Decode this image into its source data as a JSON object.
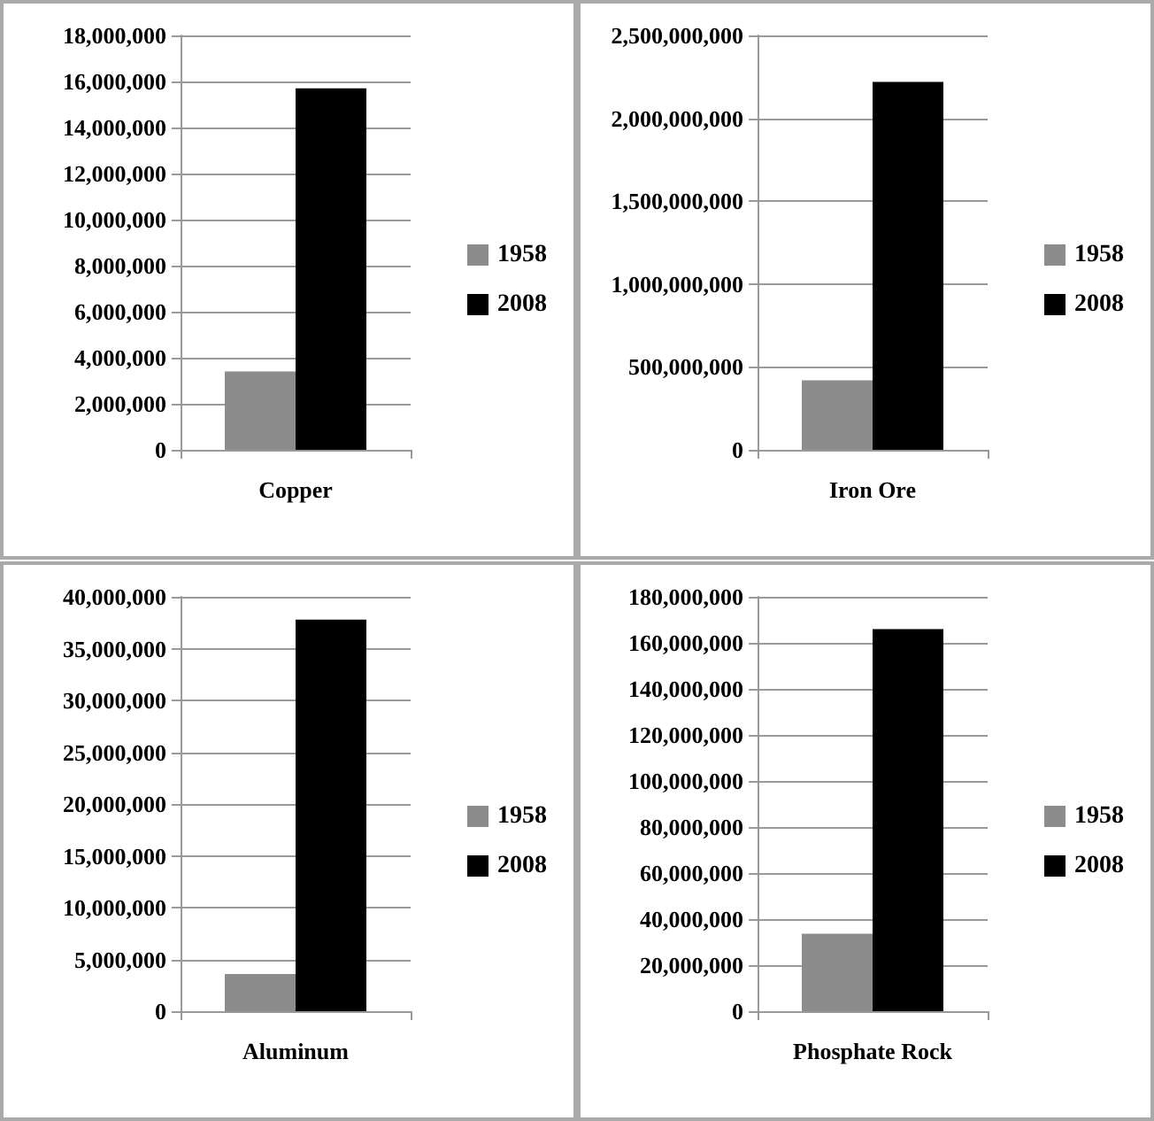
{
  "chart_data": [
    {
      "type": "bar",
      "categories": [
        "Copper"
      ],
      "series": [
        {
          "name": "1958",
          "color": "#8c8c8c",
          "values": [
            3400000
          ]
        },
        {
          "name": "2008",
          "color": "#000000",
          "values": [
            15700000
          ]
        }
      ],
      "ylim": [
        0,
        18000000
      ],
      "yticks": [
        {
          "value": 0,
          "label": "0"
        },
        {
          "value": 2000000,
          "label": "2,000,000"
        },
        {
          "value": 4000000,
          "label": "4,000,000"
        },
        {
          "value": 6000000,
          "label": "6,000,000"
        },
        {
          "value": 8000000,
          "label": "8,000,000"
        },
        {
          "value": 10000000,
          "label": "10,000,000"
        },
        {
          "value": 12000000,
          "label": "12,000,000"
        },
        {
          "value": 14000000,
          "label": "14,000,000"
        },
        {
          "value": 16000000,
          "label": "16,000,000"
        },
        {
          "value": 18000000,
          "label": "18,000,000"
        }
      ],
      "grid": "y",
      "legend": "right"
    },
    {
      "type": "bar",
      "categories": [
        "Iron Ore"
      ],
      "series": [
        {
          "name": "1958",
          "color": "#8c8c8c",
          "values": [
            420000000
          ]
        },
        {
          "name": "2008",
          "color": "#000000",
          "values": [
            2220000000
          ]
        }
      ],
      "ylim": [
        0,
        2500000000
      ],
      "yticks": [
        {
          "value": 0,
          "label": "0"
        },
        {
          "value": 500000000,
          "label": "500,000,000"
        },
        {
          "value": 1000000000,
          "label": "1,000,000,000"
        },
        {
          "value": 1500000000,
          "label": "1,500,000,000"
        },
        {
          "value": 2000000000,
          "label": "2,000,000,000"
        },
        {
          "value": 2500000000,
          "label": "2,500,000,000"
        }
      ],
      "grid": "y",
      "legend": "right"
    },
    {
      "type": "bar",
      "categories": [
        "Aluminum"
      ],
      "series": [
        {
          "name": "1958",
          "color": "#8c8c8c",
          "values": [
            3600000
          ]
        },
        {
          "name": "2008",
          "color": "#000000",
          "values": [
            37800000
          ]
        }
      ],
      "ylim": [
        0,
        40000000
      ],
      "yticks": [
        {
          "value": 0,
          "label": "0"
        },
        {
          "value": 5000000,
          "label": "5,000,000"
        },
        {
          "value": 10000000,
          "label": "10,000,000"
        },
        {
          "value": 15000000,
          "label": "15,000,000"
        },
        {
          "value": 20000000,
          "label": "20,000,000"
        },
        {
          "value": 25000000,
          "label": "25,000,000"
        },
        {
          "value": 30000000,
          "label": "30,000,000"
        },
        {
          "value": 35000000,
          "label": "35,000,000"
        },
        {
          "value": 40000000,
          "label": "40,000,000"
        }
      ],
      "grid": "y",
      "legend": "right"
    },
    {
      "type": "bar",
      "categories": [
        "Phosphate Rock"
      ],
      "series": [
        {
          "name": "1958",
          "color": "#8c8c8c",
          "values": [
            33700000
          ]
        },
        {
          "name": "2008",
          "color": "#000000",
          "values": [
            166000000
          ]
        }
      ],
      "ylim": [
        0,
        180000000
      ],
      "yticks": [
        {
          "value": 0,
          "label": "0"
        },
        {
          "value": 20000000,
          "label": "20,000,000"
        },
        {
          "value": 40000000,
          "label": "40,000,000"
        },
        {
          "value": 60000000,
          "label": "60,000,000"
        },
        {
          "value": 80000000,
          "label": "80,000,000"
        },
        {
          "value": 100000000,
          "label": "100,000,000"
        },
        {
          "value": 120000000,
          "label": "120,000,000"
        },
        {
          "value": 140000000,
          "label": "140,000,000"
        },
        {
          "value": 160000000,
          "label": "160,000,000"
        },
        {
          "value": 180000000,
          "label": "180,000,000"
        }
      ],
      "grid": "y",
      "legend": "right"
    }
  ]
}
